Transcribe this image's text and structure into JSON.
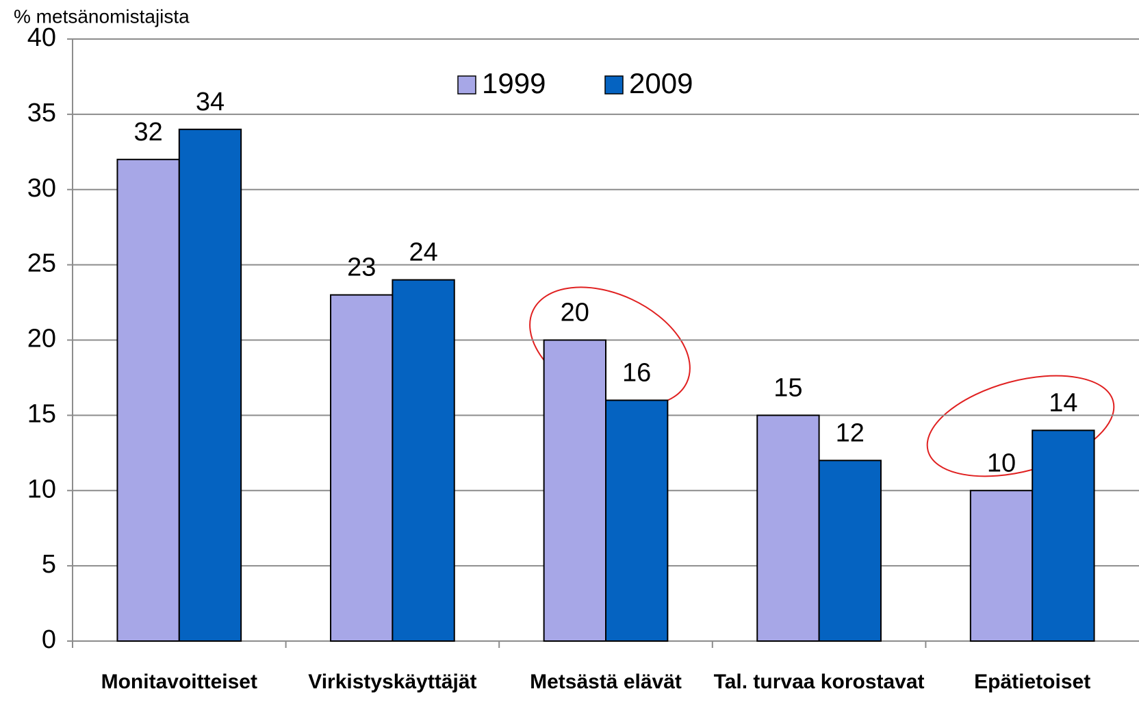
{
  "chart_data": {
    "type": "bar",
    "y_axis_label": "% metsänomistajista",
    "categories": [
      "Monitavoitteiset",
      "Virkistyskäyttäjät",
      "Metsästä elävät",
      "Tal. turvaa korostavat",
      "Epätietoiset"
    ],
    "series": [
      {
        "name": "1999",
        "color": "#a7a7e7",
        "values": [
          32,
          23,
          20,
          15,
          10
        ]
      },
      {
        "name": "2009",
        "color": "#0563c1",
        "values": [
          34,
          24,
          16,
          12,
          14
        ]
      }
    ],
    "ylim": [
      0,
      40
    ],
    "yticks": [
      0,
      5,
      10,
      15,
      20,
      25,
      30,
      35,
      40
    ],
    "grid": true,
    "legend": "top"
  }
}
